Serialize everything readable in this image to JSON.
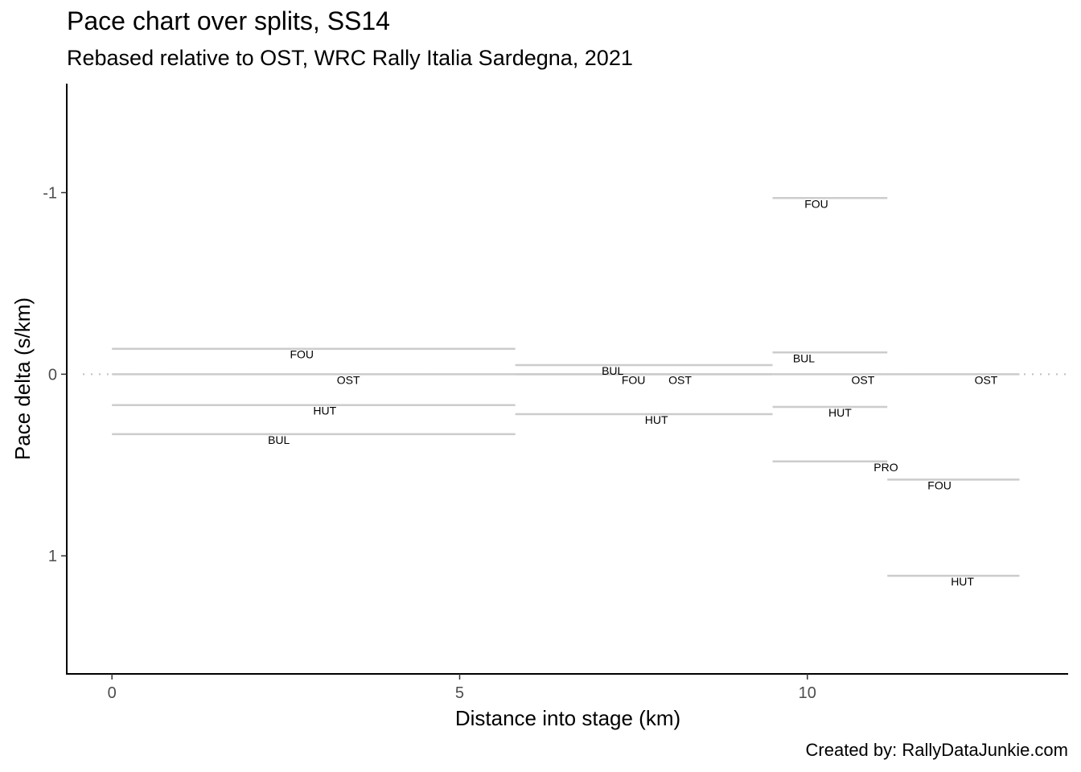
{
  "chart_data": {
    "type": "line",
    "title": "Pace chart over splits, SS14",
    "subtitle": "Rebased relative to OST, WRC Rally Italia Sardegna, 2021",
    "xlabel": "Distance into stage (km)",
    "ylabel": "Pace delta (s/km)",
    "caption": "Created by: RallyDataJunkie.com",
    "xlim": [
      -0.65,
      13.75
    ],
    "ylim": [
      1.65,
      -1.6
    ],
    "y_reversed": true,
    "xticks": [
      {
        "value": 0,
        "label": "0"
      },
      {
        "value": 5,
        "label": "5"
      },
      {
        "value": 10,
        "label": "10"
      }
    ],
    "yticks": [
      {
        "value": -1,
        "label": "-1"
      },
      {
        "value": 0,
        "label": "0"
      },
      {
        "value": 1,
        "label": "1"
      }
    ],
    "reference_line": {
      "y": 0,
      "style": "dotted"
    },
    "segments": [
      {
        "driver": "FOU",
        "x0": 0,
        "x1": 5.8,
        "pace": -0.14
      },
      {
        "driver": "OST",
        "x0": 0,
        "x1": 5.8,
        "pace": 0
      },
      {
        "driver": "HUT",
        "x0": 0,
        "x1": 5.8,
        "pace": 0.17
      },
      {
        "driver": "BUL",
        "x0": 0,
        "x1": 5.8,
        "pace": 0.33
      },
      {
        "driver": "BUL",
        "x0": 5.8,
        "x1": 9.5,
        "pace": -0.05
      },
      {
        "driver": "FOU",
        "x0": 5.8,
        "x1": 9.5,
        "pace": 0
      },
      {
        "driver": "OST",
        "x0": 5.8,
        "x1": 9.5,
        "pace": 0
      },
      {
        "driver": "HUT",
        "x0": 5.8,
        "x1": 9.5,
        "pace": 0.22
      },
      {
        "driver": "FOU",
        "x0": 9.5,
        "x1": 11.15,
        "pace": -0.97
      },
      {
        "driver": "BUL",
        "x0": 9.5,
        "x1": 11.15,
        "pace": -0.12
      },
      {
        "driver": "OST",
        "x0": 9.5,
        "x1": 11.15,
        "pace": 0
      },
      {
        "driver": "HUT",
        "x0": 9.5,
        "x1": 11.15,
        "pace": 0.18
      },
      {
        "driver": "PRO",
        "x0": 9.5,
        "x1": 11.15,
        "pace": 0.48
      },
      {
        "driver": "OST",
        "x0": 11.15,
        "x1": 13.05,
        "pace": 0
      },
      {
        "driver": "FOU",
        "x0": 11.15,
        "x1": 13.05,
        "pace": 0.58
      },
      {
        "driver": "HUT",
        "x0": 11.15,
        "x1": 13.05,
        "pace": 1.11
      }
    ],
    "labels": [
      {
        "text": "FOU",
        "x": 2.73,
        "y": -0.14
      },
      {
        "text": "OST",
        "x": 3.4,
        "y": 0
      },
      {
        "text": "HUT",
        "x": 3.06,
        "y": 0.17
      },
      {
        "text": "BUL",
        "x": 2.4,
        "y": 0.33
      },
      {
        "text": "BUL",
        "x": 7.2,
        "y": -0.05
      },
      {
        "text": "FOU",
        "x": 7.5,
        "y": 0
      },
      {
        "text": "OST",
        "x": 8.17,
        "y": 0
      },
      {
        "text": "HUT",
        "x": 7.83,
        "y": 0.22
      },
      {
        "text": "FOU",
        "x": 10.13,
        "y": -0.97
      },
      {
        "text": "BUL",
        "x": 9.95,
        "y": -0.12
      },
      {
        "text": "OST",
        "x": 10.8,
        "y": 0
      },
      {
        "text": "HUT",
        "x": 10.47,
        "y": 0.18
      },
      {
        "text": "PRO",
        "x": 11.13,
        "y": 0.48
      },
      {
        "text": "FOU",
        "x": 11.9,
        "y": 0.58
      },
      {
        "text": "OST",
        "x": 12.57,
        "y": 0
      },
      {
        "text": "HUT",
        "x": 12.23,
        "y": 1.11
      }
    ],
    "colors": {
      "segment": "#cccccc",
      "reference": "#bfbfbf",
      "axis": "#000000",
      "tick_text": "#4d4d4d"
    }
  }
}
